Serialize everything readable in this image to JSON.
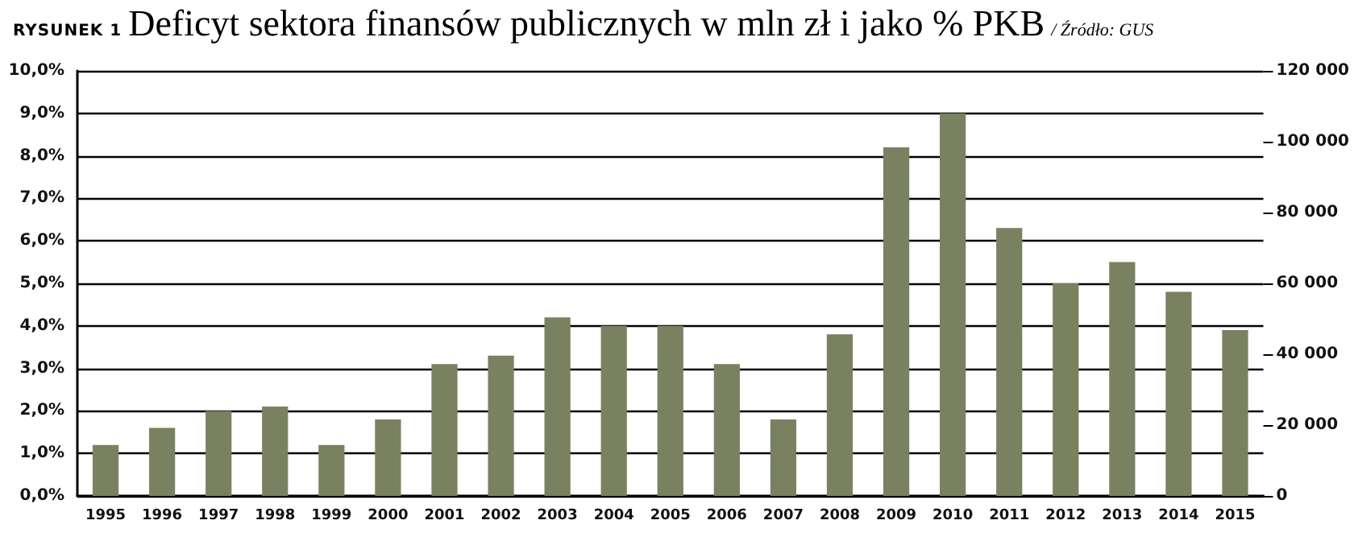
{
  "chart_data": {
    "type": "bar",
    "title": "Deficyt sektora finansów publicznych w mln zł i jako % PKB",
    "annotations": [
      "RYSUNEK 1",
      "/ Źródło: GUS"
    ],
    "categories": [
      "1995",
      "1996",
      "1997",
      "1998",
      "1999",
      "2000",
      "2001",
      "2002",
      "2003",
      "2004",
      "2005",
      "2006",
      "2007",
      "2008",
      "2009",
      "2010",
      "2011",
      "2012",
      "2013",
      "2014",
      "2015"
    ],
    "values": [
      1.2,
      1.6,
      2.0,
      2.1,
      1.2,
      1.8,
      3.1,
      3.3,
      4.2,
      4.0,
      4.0,
      3.1,
      1.8,
      3.8,
      8.2,
      9.0,
      6.3,
      5.0,
      5.5,
      4.8,
      3.9
    ],
    "color": "#7a8160",
    "ylim": [
      0,
      10
    ],
    "yticks": [
      {
        "value": 0,
        "label": "0,0%"
      },
      {
        "value": 1,
        "label": "1,0%"
      },
      {
        "value": 2,
        "label": "2,0%"
      },
      {
        "value": 3,
        "label": "3,0%"
      },
      {
        "value": 4,
        "label": "4,0%"
      },
      {
        "value": 5,
        "label": "5,0%"
      },
      {
        "value": 6,
        "label": "6,0%"
      },
      {
        "value": 7,
        "label": "7,0%"
      },
      {
        "value": 8,
        "label": "8,0%"
      },
      {
        "value": 9,
        "label": "9,0%"
      },
      {
        "value": 10,
        "label": "10,0%"
      }
    ],
    "y2lim": [
      0,
      120000
    ],
    "y2ticks": [
      {
        "value": 0,
        "label": "0"
      },
      {
        "value": 20000,
        "label": "20 000"
      },
      {
        "value": 40000,
        "label": "40 000"
      },
      {
        "value": 60000,
        "label": "60 000"
      },
      {
        "value": 80000,
        "label": "80 000"
      },
      {
        "value": 100000,
        "label": "100 000"
      },
      {
        "value": 120000,
        "label": "120 000"
      }
    ],
    "grid": "y"
  }
}
